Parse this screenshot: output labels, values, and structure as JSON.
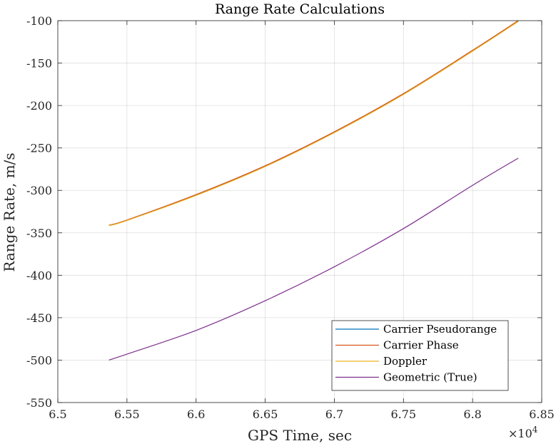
{
  "chart_data": {
    "type": "line",
    "title": "Range Rate Calculations",
    "xlabel": "GPS Time, sec",
    "ylabel": "Range Rate, m/s",
    "x_exponent_base": "×10",
    "x_exponent_power": "4",
    "xlim": [
      6.5,
      6.85
    ],
    "ylim": [
      -550,
      -100
    ],
    "xticks": [
      6.5,
      6.55,
      6.6,
      6.65,
      6.7,
      6.75,
      6.8,
      6.85
    ],
    "xtick_labels": [
      "6.5",
      "6.55",
      "6.6",
      "6.65",
      "6.7",
      "6.75",
      "6.8",
      "6.85"
    ],
    "yticks": [
      -550,
      -500,
      -450,
      -400,
      -350,
      -300,
      -250,
      -200,
      -150,
      -100
    ],
    "ytick_labels": [
      "-550",
      "-500",
      "-450",
      "-400",
      "-350",
      "-300",
      "-250",
      "-200",
      "-150",
      "-100"
    ],
    "grid": true,
    "legend_position": "bottom-right",
    "series": [
      {
        "name": "Carrier Pseudorange",
        "color": "#0072BD",
        "x": [
          6.537,
          6.55,
          6.6,
          6.65,
          6.7,
          6.75,
          6.8,
          6.833
        ],
        "y": [
          -341,
          -335,
          -305,
          -271,
          -231,
          -186,
          -135,
          -100
        ]
      },
      {
        "name": "Carrier Phase",
        "color": "#D95319",
        "x": [
          6.537,
          6.55,
          6.6,
          6.65,
          6.7,
          6.75,
          6.8,
          6.833
        ],
        "y": [
          -341,
          -335,
          -305,
          -271,
          -231,
          -186,
          -135,
          -100
        ]
      },
      {
        "name": "Doppler",
        "color": "#EDB120",
        "x": [
          6.537,
          6.55,
          6.6,
          6.65,
          6.7,
          6.75,
          6.8,
          6.833
        ],
        "y": [
          -341.5,
          -335.5,
          -306,
          -272,
          -232,
          -187,
          -136,
          -101
        ]
      },
      {
        "name": "Geometric (True)",
        "color": "#7E2F8E",
        "x": [
          6.537,
          6.55,
          6.6,
          6.65,
          6.7,
          6.75,
          6.8,
          6.833
        ],
        "y": [
          -500,
          -493,
          -465,
          -430,
          -390,
          -345,
          -294,
          -262
        ]
      }
    ]
  }
}
